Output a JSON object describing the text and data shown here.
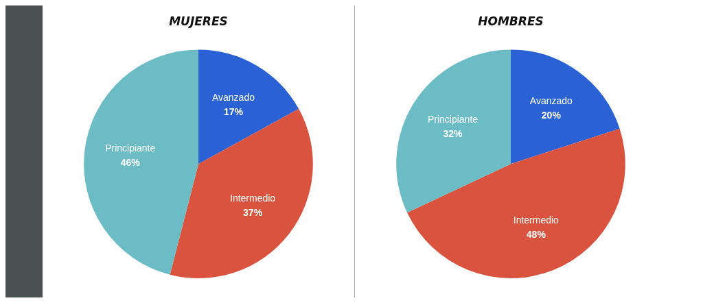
{
  "chart_data": [
    {
      "type": "pie",
      "title": "MUJERES",
      "categories": [
        "Avanzado",
        "Intermedio",
        "Principiante"
      ],
      "values": [
        17,
        37,
        46
      ],
      "colors": [
        "#2a62d6",
        "#d9533f",
        "#6bbcc4"
      ],
      "value_labels": [
        "17%",
        "37%",
        "46%"
      ]
    },
    {
      "type": "pie",
      "title": "HOMBRES",
      "categories": [
        "Avanzado",
        "Intermedio",
        "Principiante"
      ],
      "values": [
        20,
        48,
        32
      ],
      "colors": [
        "#2a62d6",
        "#d9533f",
        "#6bbcc4"
      ],
      "value_labels": [
        "20%",
        "48%",
        "32%"
      ]
    }
  ]
}
